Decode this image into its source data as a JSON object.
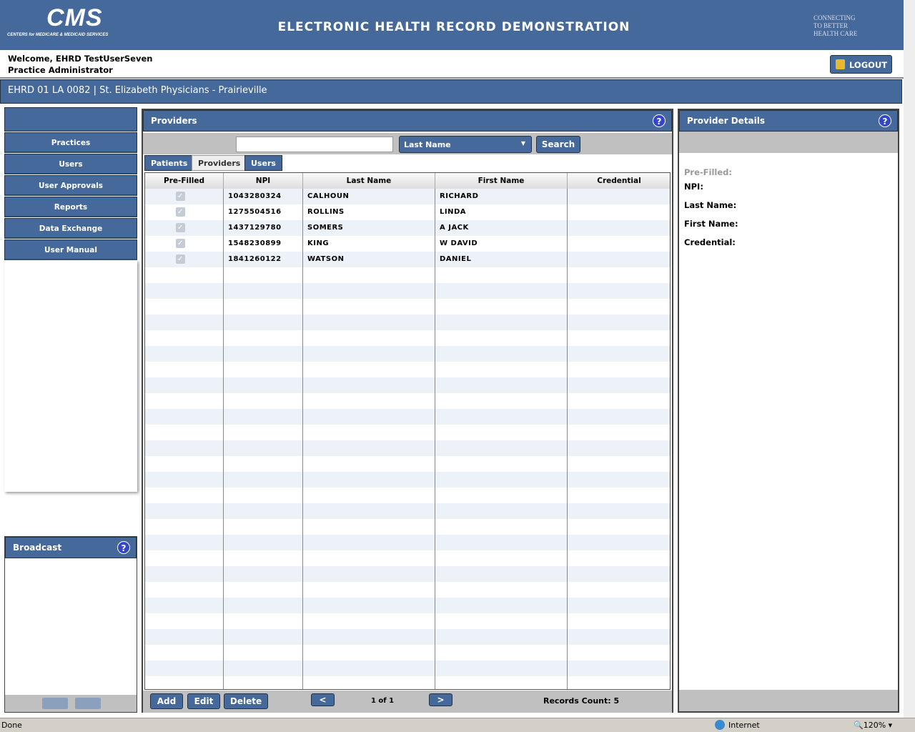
{
  "header": {
    "logo": "CMS",
    "logo_sub": "CENTERS for MEDICARE & MEDICAID SERVICES",
    "title": "ELECTRONIC HEALTH RECORD DEMONSTRATION",
    "hhs": [
      "CONNECTING",
      "TO BETTER",
      "HEALTH CARE"
    ]
  },
  "user": {
    "welcome": "Welcome, EHRD TestUserSeven",
    "role": "Practice Administrator",
    "logout": "LOGOUT"
  },
  "practice": "EHRD 01 LA 0082 | St. Elizabeth Physicians - Prairieville",
  "nav": [
    "Practices",
    "Users",
    "User Approvals",
    "Reports",
    "Data Exchange",
    "User Manual"
  ],
  "broadcast": {
    "title": "Broadcast"
  },
  "providers": {
    "title": "Providers",
    "search_value": "",
    "search_by": "Last Name",
    "search_btn": "Search",
    "tabs": [
      "Patients",
      "Providers",
      "Users"
    ],
    "active_tab": "Providers",
    "columns": [
      "Pre-Filled",
      "NPI",
      "Last Name",
      "First Name",
      "Credential"
    ],
    "rows": [
      {
        "prefilled": true,
        "npi": "1043280324",
        "last": "CALHOUN",
        "first": "RICHARD",
        "cred": ""
      },
      {
        "prefilled": true,
        "npi": "1275504516",
        "last": "ROLLINS",
        "first": "LINDA",
        "cred": ""
      },
      {
        "prefilled": true,
        "npi": "1437129780",
        "last": "SOMERS",
        "first": "A JACK",
        "cred": ""
      },
      {
        "prefilled": true,
        "npi": "1548230899",
        "last": "KING",
        "first": "W DAVID",
        "cred": ""
      },
      {
        "prefilled": true,
        "npi": "1841260122",
        "last": "WATSON",
        "first": "DANIEL",
        "cred": ""
      }
    ],
    "add": "Add",
    "edit": "Edit",
    "delete": "Delete",
    "prev": "<",
    "next": ">",
    "page": "1 of 1",
    "records": "Records Count: 5"
  },
  "details": {
    "title": "Provider Details",
    "labels": [
      "Pre-Filled:",
      "NPI:",
      "Last Name:",
      "First Name:",
      "Credential:"
    ]
  },
  "statusbar": {
    "left": "Done",
    "zone": "Internet",
    "zoom": "120%"
  }
}
